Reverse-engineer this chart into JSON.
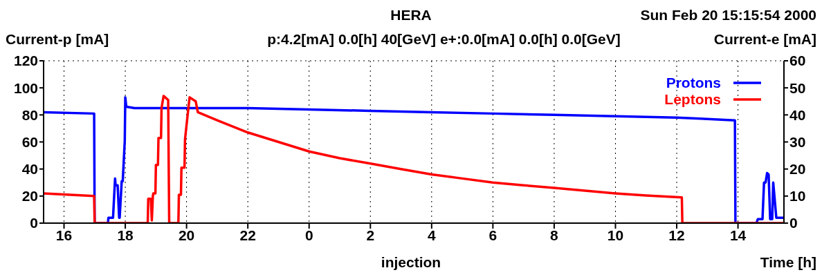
{
  "chart_data": {
    "type": "line",
    "title": "HERA",
    "subtitle": "p:4.2[mA] 0.0[h] 40[GeV] e+:0.0[mA] 0.0[h] 0.0[GeV]",
    "xlabel": "Time [h]",
    "ylabel": "Current-p [mA]",
    "y2label": "Current-e [mA]",
    "annotations": [
      "Sun Feb 20 15:15:54 2000",
      "injection"
    ],
    "xlim": [
      "2000-02-19T15:20",
      "2000-02-20T15:30"
    ],
    "xticks": [
      {
        "value": "2000-02-19T16:00",
        "label": "16"
      },
      {
        "value": "2000-02-19T18:00",
        "label": "18"
      },
      {
        "value": "2000-02-19T20:00",
        "label": "20"
      },
      {
        "value": "2000-02-19T22:00",
        "label": "22"
      },
      {
        "value": "2000-02-20T00:00",
        "label": "0"
      },
      {
        "value": "2000-02-20T02:00",
        "label": "2"
      },
      {
        "value": "2000-02-20T04:00",
        "label": "4"
      },
      {
        "value": "2000-02-20T06:00",
        "label": "6"
      },
      {
        "value": "2000-02-20T08:00",
        "label": "8"
      },
      {
        "value": "2000-02-20T10:00",
        "label": "10"
      },
      {
        "value": "2000-02-20T12:00",
        "label": "12"
      },
      {
        "value": "2000-02-20T14:00",
        "label": "14"
      }
    ],
    "ylim": [
      0,
      120
    ],
    "yticks": [
      0,
      20,
      40,
      60,
      80,
      100,
      120
    ],
    "y2lim": [
      0,
      60
    ],
    "y2ticks": [
      0,
      10,
      20,
      30,
      40,
      50,
      60
    ],
    "grid": true,
    "legend": "top right",
    "marker": "none",
    "line_style": "solid",
    "series": [
      {
        "name": "Protons",
        "color": "#0000ff",
        "x": [
          "2000-02-19T15:20",
          "2000-02-19T16:59",
          "2000-02-19T17:00",
          "2000-02-19T17:26",
          "2000-02-19T17:27",
          "2000-02-19T17:36",
          "2000-02-19T17:40",
          "2000-02-19T17:41",
          "2000-02-19T17:45",
          "2000-02-19T17:48",
          "2000-02-19T17:49",
          "2000-02-19T17:53",
          "2000-02-19T17:55",
          "2000-02-19T17:59",
          "2000-02-19T18:00",
          "2000-02-19T18:02",
          "2000-02-19T18:18",
          "2000-02-19T20:00",
          "2000-02-19T22:00",
          "2000-02-20T00:00",
          "2000-02-20T02:00",
          "2000-02-20T04:00",
          "2000-02-20T06:00",
          "2000-02-20T08:00",
          "2000-02-20T10:00",
          "2000-02-20T12:00",
          "2000-02-20T13:00",
          "2000-02-20T13:54",
          "2000-02-20T13:55",
          "2000-02-20T14:36",
          "2000-02-20T14:39",
          "2000-02-20T14:48",
          "2000-02-20T14:51",
          "2000-02-20T14:54",
          "2000-02-20T14:57",
          "2000-02-20T15:00",
          "2000-02-20T15:03",
          "2000-02-20T15:07",
          "2000-02-20T15:09",
          "2000-02-20T15:15",
          "2000-02-20T15:30"
        ],
        "values": [
          82,
          81,
          0,
          0,
          4,
          4,
          33,
          28,
          28,
          4,
          4,
          31,
          31,
          61,
          93,
          86,
          85,
          85,
          85,
          84,
          83,
          82,
          81,
          80,
          79,
          78,
          77,
          76,
          0,
          0,
          3,
          3,
          30,
          30,
          37,
          36,
          3,
          3,
          30,
          4,
          4
        ]
      },
      {
        "name": "Leptons",
        "color": "#ff0000",
        "axis": "y2",
        "x": [
          "2000-02-19T15:20",
          "2000-02-19T16:59",
          "2000-02-19T17:00",
          "2000-02-19T18:44",
          "2000-02-19T18:45",
          "2000-02-19T18:50",
          "2000-02-19T18:52",
          "2000-02-19T18:54",
          "2000-02-19T18:55",
          "2000-02-19T18:59",
          "2000-02-19T19:00",
          "2000-02-19T19:04",
          "2000-02-19T19:05",
          "2000-02-19T19:10",
          "2000-02-19T19:11",
          "2000-02-19T19:15",
          "2000-02-19T19:24",
          "2000-02-19T19:26",
          "2000-02-19T19:44",
          "2000-02-19T19:45",
          "2000-02-19T19:49",
          "2000-02-19T19:50",
          "2000-02-19T19:56",
          "2000-02-19T19:57",
          "2000-02-19T20:03",
          "2000-02-19T20:06",
          "2000-02-19T20:18",
          "2000-02-19T20:22",
          "2000-02-19T21:00",
          "2000-02-19T22:00",
          "2000-02-19T23:00",
          "2000-02-20T00:00",
          "2000-02-20T01:00",
          "2000-02-20T02:00",
          "2000-02-20T03:00",
          "2000-02-20T04:00",
          "2000-02-20T05:00",
          "2000-02-20T06:00",
          "2000-02-20T07:00",
          "2000-02-20T08:00",
          "2000-02-20T09:00",
          "2000-02-20T10:00",
          "2000-02-20T11:00",
          "2000-02-20T12:10",
          "2000-02-20T12:11",
          "2000-02-20T15:30"
        ],
        "values": [
          11,
          10,
          0,
          0,
          9,
          9,
          1,
          10,
          11,
          11,
          21.5,
          21.5,
          31.5,
          31.5,
          42.5,
          47,
          45.5,
          0,
          0,
          10.5,
          10.5,
          20.5,
          20.5,
          31,
          41.5,
          46.5,
          45,
          41,
          38,
          33.5,
          30,
          26.5,
          24,
          22,
          20,
          18,
          16.5,
          15,
          14,
          13,
          12,
          11,
          10.2,
          9.5,
          0,
          0
        ]
      }
    ]
  }
}
